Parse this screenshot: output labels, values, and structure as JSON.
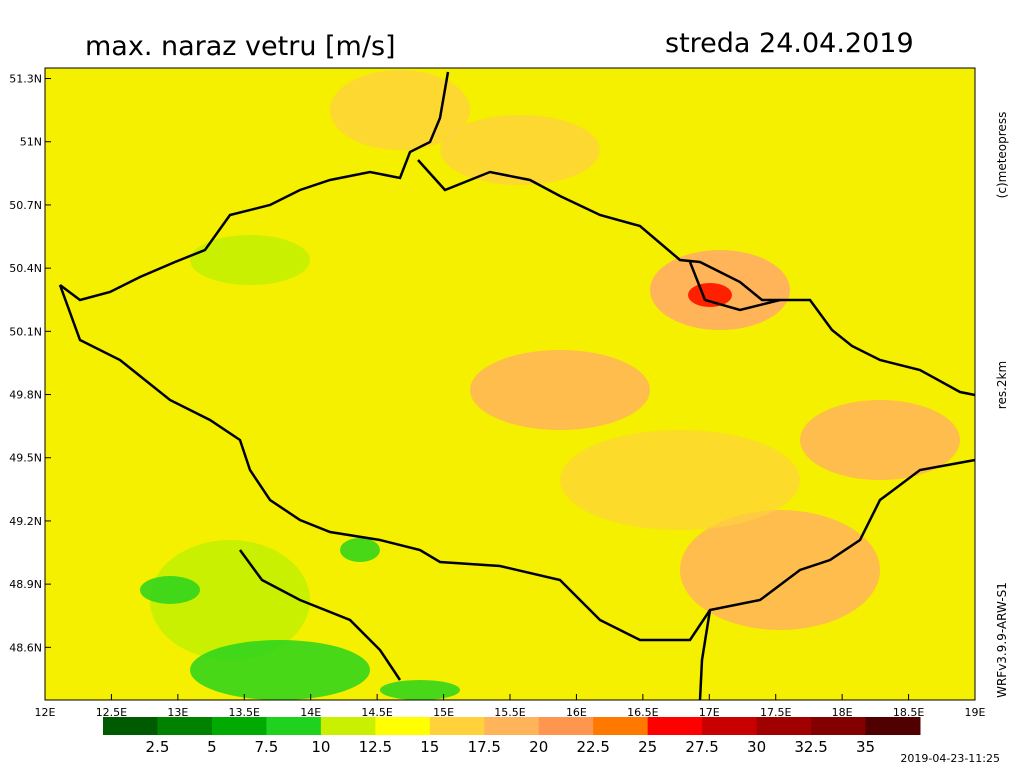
{
  "title": "max. naraz vetru [m/s]",
  "date": "streda 24.04.2019",
  "credit": "(c)meteopress",
  "resolution": "res.2km",
  "model": "WRFv3.9.9-ARW-S1",
  "timestamp": "2019-04-23-11:25",
  "map": {
    "xlim": [
      12,
      19
    ],
    "ylim": [
      48.35,
      51.35
    ],
    "xticks": [
      {
        "value": 12,
        "label": "12E"
      },
      {
        "value": 12.5,
        "label": "12.5E"
      },
      {
        "value": 13,
        "label": "13E"
      },
      {
        "value": 13.5,
        "label": "13.5E"
      },
      {
        "value": 14,
        "label": "14E"
      },
      {
        "value": 14.5,
        "label": "14.5E"
      },
      {
        "value": 15,
        "label": "15E"
      },
      {
        "value": 15.5,
        "label": "15.5E"
      },
      {
        "value": 16,
        "label": "16E"
      },
      {
        "value": 16.5,
        "label": "16.5E"
      },
      {
        "value": 17,
        "label": "17E"
      },
      {
        "value": 17.5,
        "label": "17.5E"
      },
      {
        "value": 18,
        "label": "18E"
      },
      {
        "value": 18.5,
        "label": "18.5E"
      },
      {
        "value": 19,
        "label": "19E"
      }
    ],
    "yticks": [
      {
        "value": 51.3,
        "label": "51.3N"
      },
      {
        "value": 51,
        "label": "51N"
      },
      {
        "value": 50.7,
        "label": "50.7N"
      },
      {
        "value": 50.4,
        "label": "50.4N"
      },
      {
        "value": 50.1,
        "label": "50.1N"
      },
      {
        "value": 49.8,
        "label": "49.8N"
      },
      {
        "value": 49.5,
        "label": "49.5N"
      },
      {
        "value": 49.2,
        "label": "49.2N"
      },
      {
        "value": 48.9,
        "label": "48.9N"
      },
      {
        "value": 48.6,
        "label": "48.6N"
      }
    ]
  },
  "colorbar": {
    "ticks": [
      2.5,
      5,
      7.5,
      10,
      12.5,
      15,
      17.5,
      20,
      22.5,
      25,
      27.5,
      30,
      32.5,
      35
    ],
    "colors": [
      "#005a00",
      "#008200",
      "#00aa00",
      "#1ed21e",
      "#c8f000",
      "#ffff00",
      "#ffd23c",
      "#ffb45a",
      "#ff9650",
      "#ff7800",
      "#ff0000",
      "#c80000",
      "#a00000",
      "#820000",
      "#500000"
    ]
  }
}
